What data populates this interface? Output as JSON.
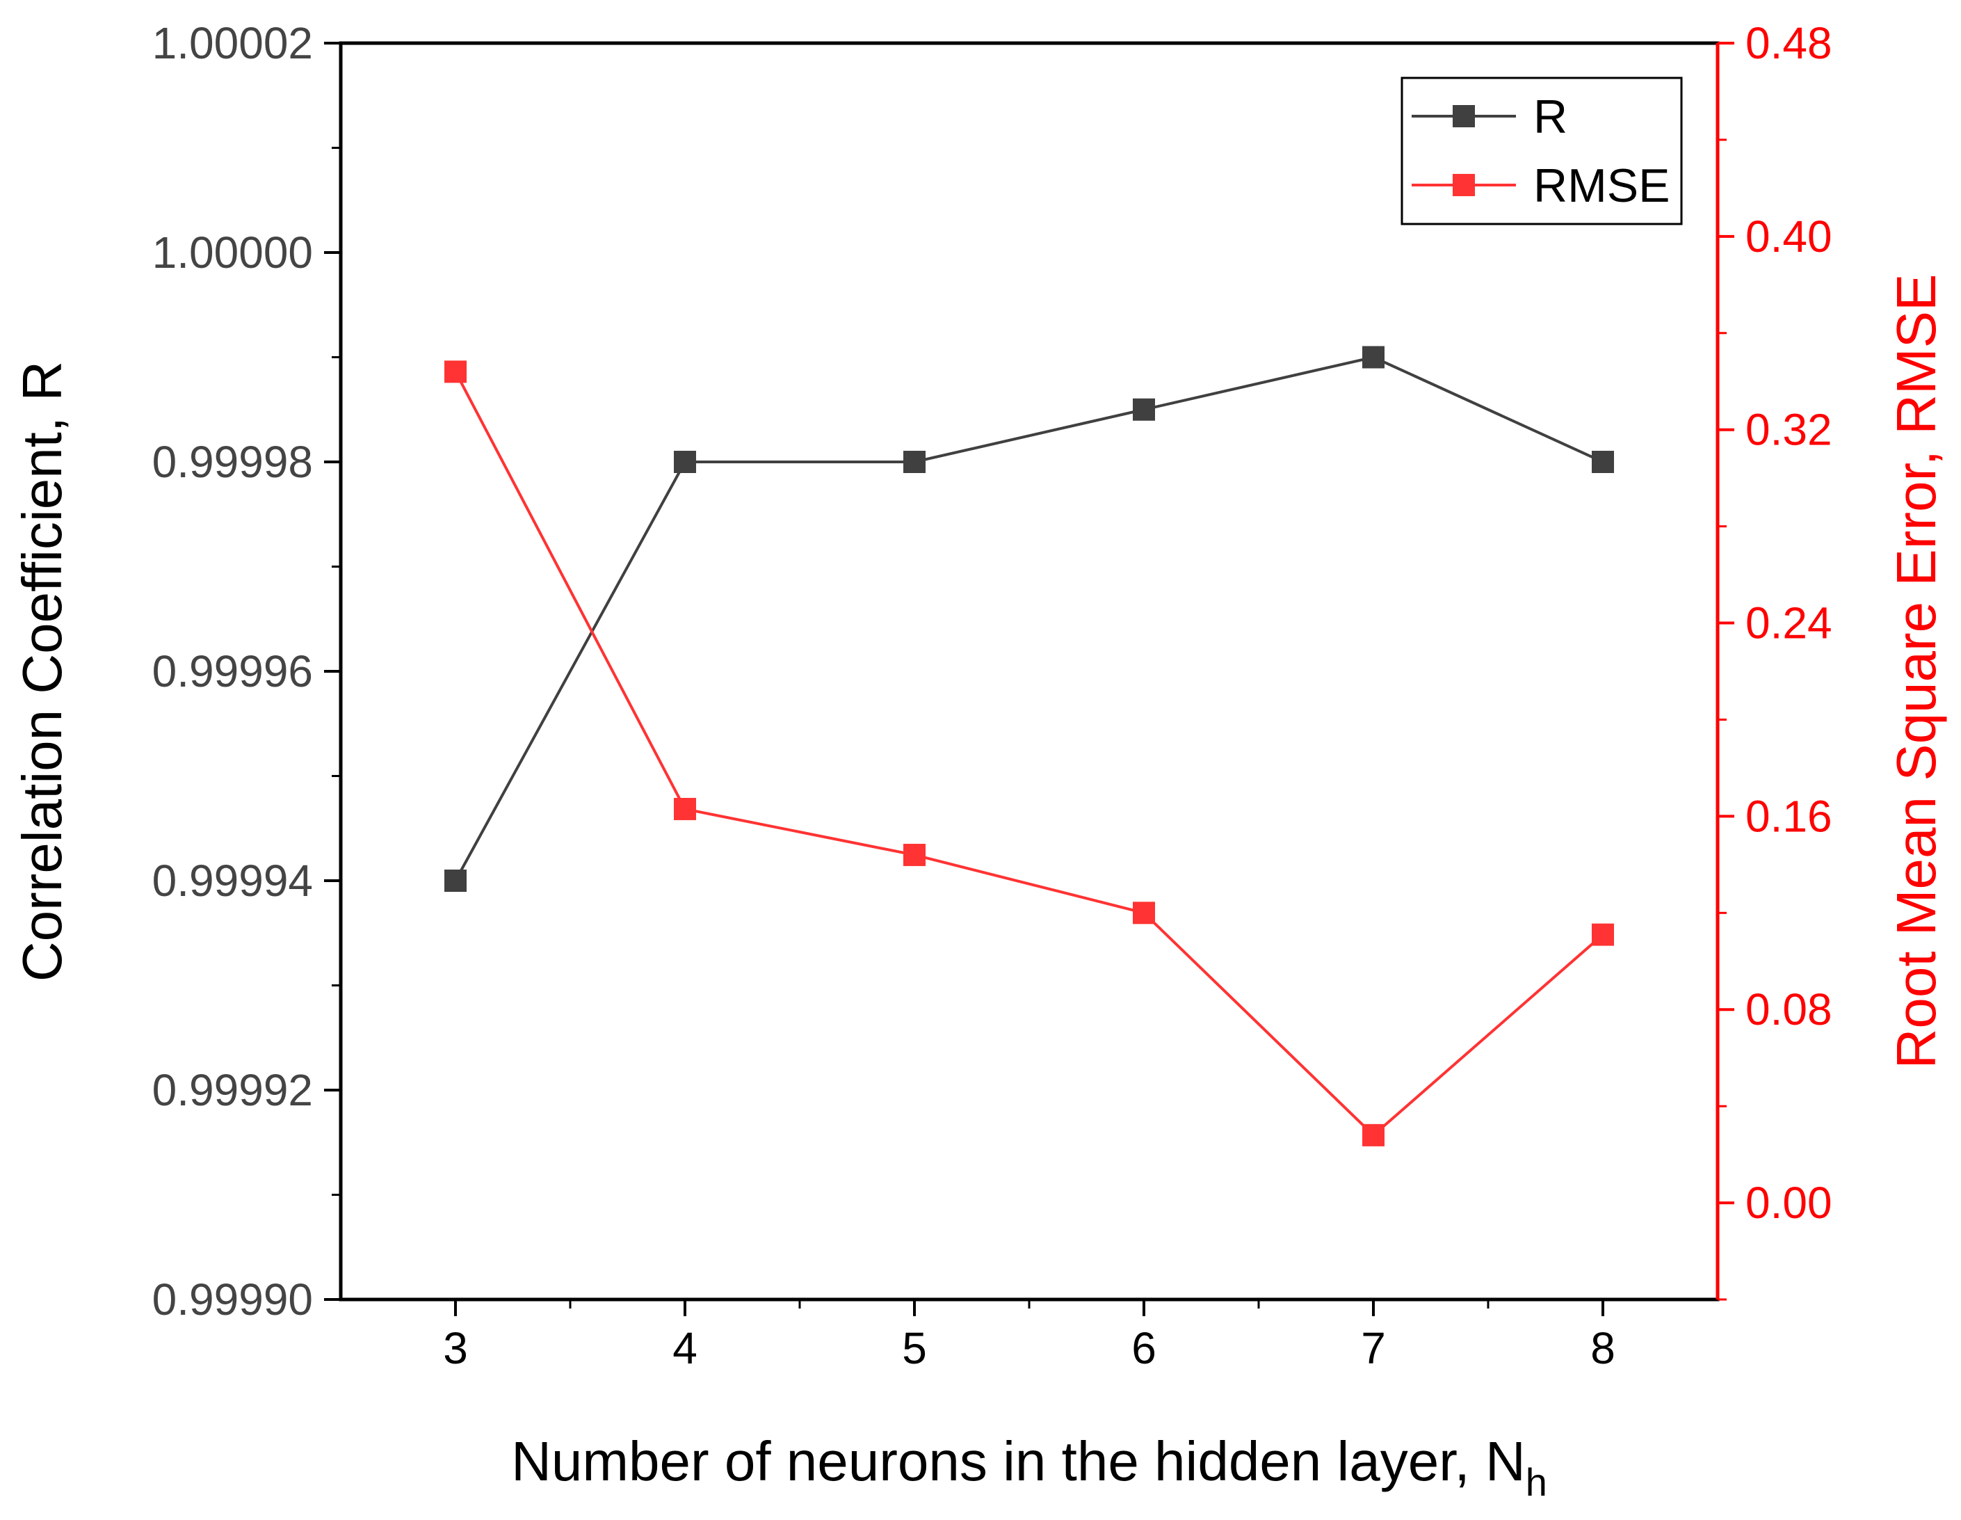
{
  "chart_data": {
    "type": "line",
    "x": [
      3,
      4,
      5,
      6,
      7,
      8
    ],
    "xlabel": "Number of neurons in the hidden layer, N",
    "xlabel_sub": "h",
    "xticks": [
      "3",
      "4",
      "5",
      "6",
      "7",
      "8"
    ],
    "xlim": [
      2.5,
      8.5
    ],
    "left_axis": {
      "label": "Correlation Coefficient, R",
      "ylim": [
        0.9999,
        1.00002
      ],
      "ticks": [
        "0.99990",
        "0.99992",
        "0.99994",
        "0.99996",
        "0.99998",
        "1.00000",
        "1.00002"
      ],
      "tick_values": [
        0.9999,
        0.99992,
        0.99994,
        0.99996,
        0.99998,
        1.0,
        1.00002
      ],
      "color": "#000000"
    },
    "right_axis": {
      "label": "Root Mean Square Error, RMSE",
      "ylim": [
        -0.04,
        0.48
      ],
      "ticks": [
        "0.00",
        "0.08",
        "0.16",
        "0.24",
        "0.32",
        "0.40",
        "0.48"
      ],
      "tick_values": [
        0.0,
        0.08,
        0.16,
        0.24,
        0.32,
        0.4,
        0.48
      ],
      "color": "#ff0000"
    },
    "series": [
      {
        "name": "R",
        "axis": "left",
        "color": "#404040",
        "marker": "square",
        "values": [
          0.99994,
          0.99998,
          0.99998,
          0.999985,
          0.99999,
          0.99998
        ]
      },
      {
        "name": "RMSE",
        "axis": "right",
        "color": "#ff3333",
        "marker": "square",
        "values": [
          0.344,
          0.163,
          0.144,
          0.12,
          0.028,
          0.111
        ]
      }
    ],
    "legend": "top-right",
    "grid": false
  }
}
